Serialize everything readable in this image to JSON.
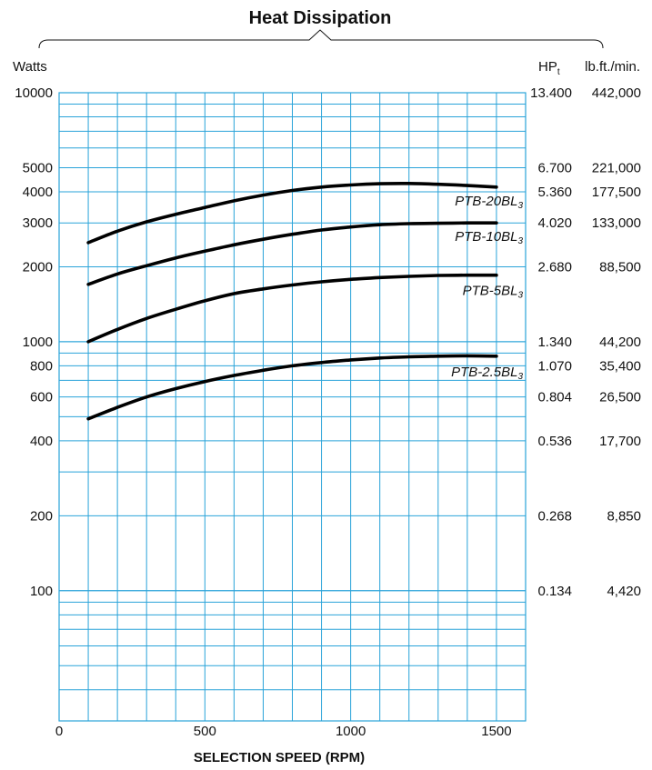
{
  "chart_data": {
    "type": "line",
    "title": "Heat Dissipation",
    "xlabel": "SELECTION SPEED (RPM)",
    "ylabel": "Watts",
    "xlim": [
      0,
      1600
    ],
    "ylim": [
      30,
      10000
    ],
    "yscale": "log",
    "grid": true,
    "x_ticks": [
      "0",
      "500",
      "1000",
      "1500"
    ],
    "x_tick_values": [
      0,
      500,
      1000,
      1500
    ],
    "y_ticks": [
      {
        "value": 10000,
        "label": "10000"
      },
      {
        "value": 5000,
        "label": "5000"
      },
      {
        "value": 4000,
        "label": "4000"
      },
      {
        "value": 3000,
        "label": "3000"
      },
      {
        "value": 2000,
        "label": "2000"
      },
      {
        "value": 1000,
        "label": "1000"
      },
      {
        "value": 800,
        "label": "800"
      },
      {
        "value": 600,
        "label": "600"
      },
      {
        "value": 400,
        "label": "400"
      },
      {
        "value": 200,
        "label": "200"
      },
      {
        "value": 100,
        "label": "100"
      }
    ],
    "right_axis_headers": {
      "hp_base": "HP",
      "hp_sub": "t",
      "lbft": "lb.ft./min."
    },
    "right_ticks": [
      {
        "value": 10000,
        "hp": "13.400",
        "lbft": "442,000"
      },
      {
        "value": 5000,
        "hp": "6.700",
        "lbft": "221,000"
      },
      {
        "value": 4000,
        "hp": "5.360",
        "lbft": "177,500"
      },
      {
        "value": 3000,
        "hp": "4.020",
        "lbft": "133,000"
      },
      {
        "value": 2000,
        "hp": "2.680",
        "lbft": "88,500"
      },
      {
        "value": 1000,
        "hp": "1.340",
        "lbft": "44,200"
      },
      {
        "value": 800,
        "hp": "1.070",
        "lbft": "35,400"
      },
      {
        "value": 600,
        "hp": "0.804",
        "lbft": "26,500"
      },
      {
        "value": 400,
        "hp": "0.536",
        "lbft": "17,700"
      },
      {
        "value": 200,
        "hp": "0.268",
        "lbft": "8,850"
      },
      {
        "value": 100,
        "hp": "0.134",
        "lbft": "4,420"
      }
    ],
    "series": [
      {
        "name": "PTB-20BL3",
        "label_base": "PTB-20BL",
        "label_sub": "3",
        "x": [
          100,
          200,
          300,
          400,
          500,
          600,
          700,
          800,
          900,
          1000,
          1100,
          1200,
          1300,
          1400,
          1500
        ],
        "values": [
          2500,
          2780,
          3030,
          3250,
          3460,
          3680,
          3880,
          4050,
          4180,
          4260,
          4310,
          4320,
          4290,
          4240,
          4180
        ]
      },
      {
        "name": "PTB-10BL3",
        "label_base": "PTB-10BL",
        "label_sub": "3",
        "x": [
          100,
          200,
          300,
          400,
          500,
          600,
          700,
          800,
          900,
          1000,
          1100,
          1200,
          1300,
          1400,
          1500
        ],
        "values": [
          1700,
          1870,
          2020,
          2170,
          2310,
          2450,
          2580,
          2700,
          2810,
          2890,
          2950,
          2980,
          2990,
          3000,
          3000
        ]
      },
      {
        "name": "PTB-5BL3",
        "label_base": "PTB-5BL",
        "label_sub": "3",
        "x": [
          100,
          200,
          300,
          400,
          500,
          600,
          700,
          800,
          900,
          1000,
          1100,
          1200,
          1300,
          1400,
          1500
        ],
        "values": [
          1000,
          1120,
          1240,
          1350,
          1460,
          1560,
          1630,
          1690,
          1740,
          1780,
          1810,
          1830,
          1845,
          1850,
          1850
        ]
      },
      {
        "name": "PTB-2.5BL3",
        "label_base": "PTB-2.5BL",
        "label_sub": "3",
        "x": [
          100,
          200,
          300,
          400,
          500,
          600,
          700,
          800,
          900,
          1000,
          1100,
          1200,
          1300,
          1400,
          1500
        ],
        "values": [
          490,
          545,
          600,
          648,
          692,
          732,
          768,
          800,
          825,
          845,
          860,
          870,
          875,
          878,
          875
        ]
      }
    ]
  }
}
